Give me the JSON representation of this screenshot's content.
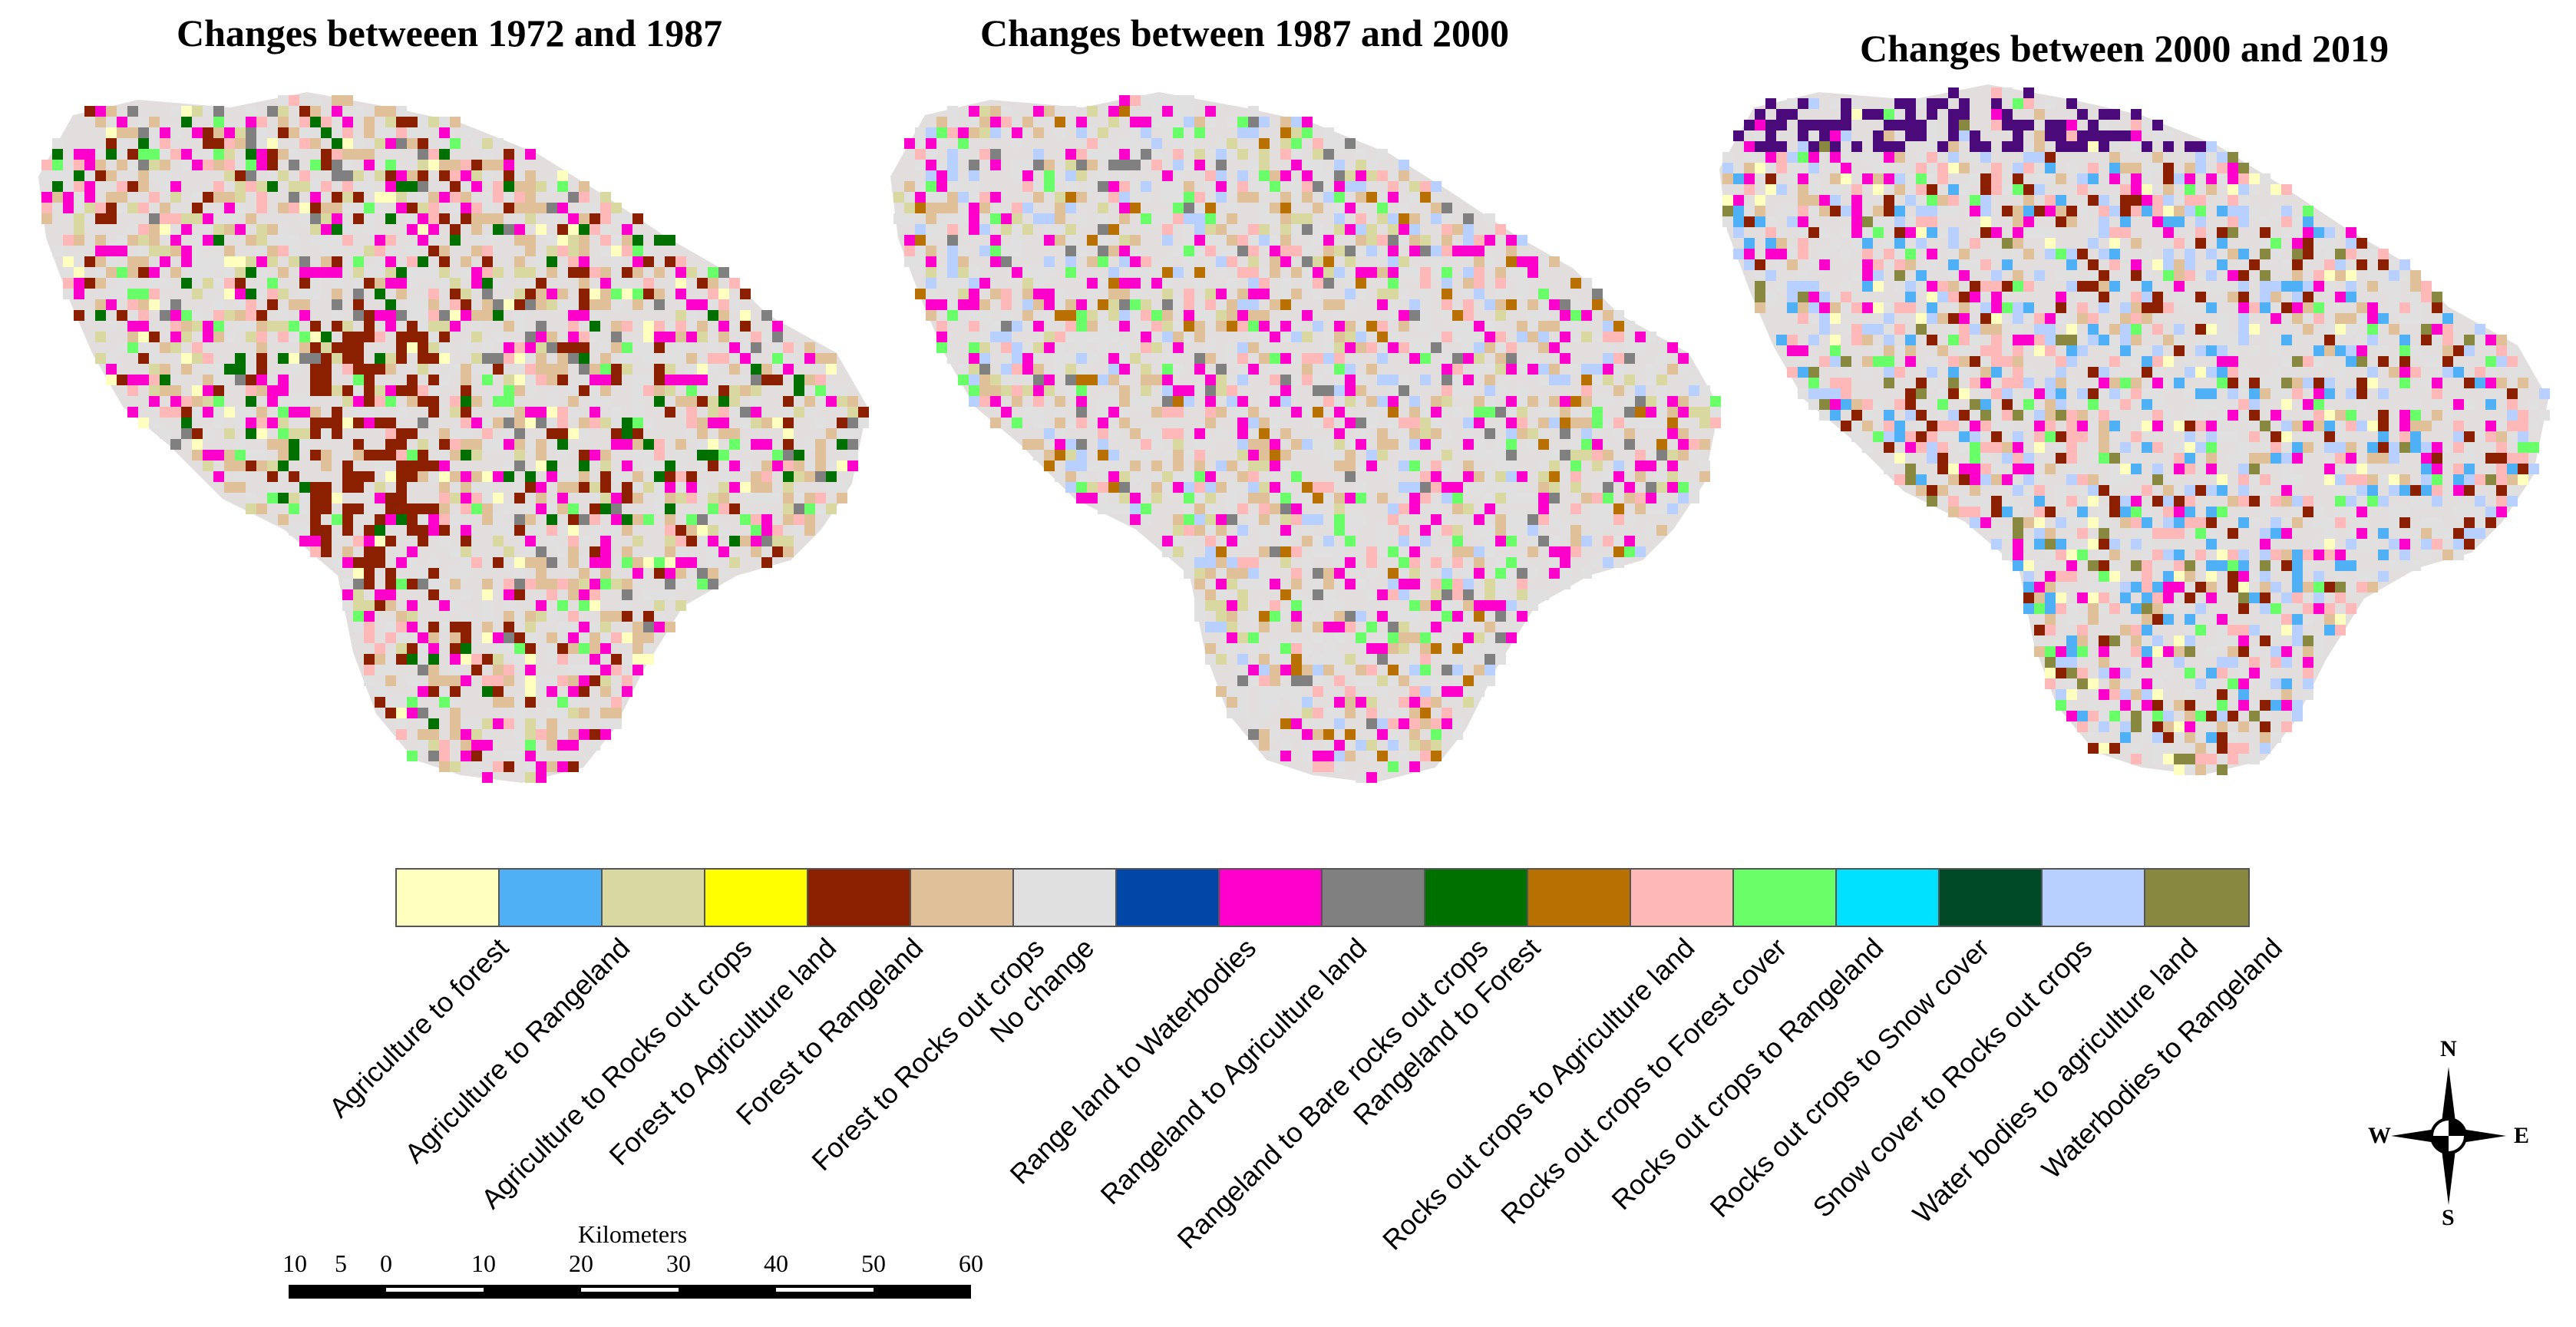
{
  "titles": [
    "Changes betweeen 1972  and 1987",
    "Changes between 1987 and 2000",
    "Changes between 2000 and 2019"
  ],
  "legend": [
    {
      "label": "Agriculture to forest",
      "color": "#ffffc0"
    },
    {
      "label": "Agriculture to Rangeland",
      "color": "#4fb0f5"
    },
    {
      "label": "Agriculture to Rocks out crops",
      "color": "#d8d8a0"
    },
    {
      "label": "Forest to Agriculture land",
      "color": "#ffff00"
    },
    {
      "label": "Forest to Rangeland",
      "color": "#8a2000"
    },
    {
      "label": "Forest to Rocks out crops",
      "color": "#dfc098"
    },
    {
      "label": "No change",
      "color": "#e0e0e0"
    },
    {
      "label": "Range land to Waterbodies",
      "color": "#0047a8"
    },
    {
      "label": "Rangeland to Agriculture land",
      "color": "#ff00cc"
    },
    {
      "label": "Rangeland to Bare rocks out crops",
      "color": "#808080"
    },
    {
      "label": "Rangeland to Forest",
      "color": "#007000"
    },
    {
      "label": "Rocks out crops to Agriculture land",
      "color": "#b87000"
    },
    {
      "label": "Rocks out crops to Forest cover",
      "color": "#ffb8b8"
    },
    {
      "label": "Rocks out crops to Rangeland",
      "color": "#68ff68"
    },
    {
      "label": "Rocks out crops to Snow cover",
      "color": "#00e0ff"
    },
    {
      "label": "Snow cover to Rocks out crops",
      "color": "#004a28"
    },
    {
      "label": "Water bodies to agriculture land",
      "color": "#b8d0ff"
    },
    {
      "label": "Waterbodies to Rangeland",
      "color": "#888840"
    }
  ],
  "compass": {
    "n": "N",
    "s": "S",
    "e": "E",
    "w": "W"
  },
  "scale": {
    "title": "Kilometers",
    "ticks": [
      "10",
      "5",
      "0",
      "10",
      "20",
      "30",
      "40",
      "50",
      "60"
    ]
  }
}
